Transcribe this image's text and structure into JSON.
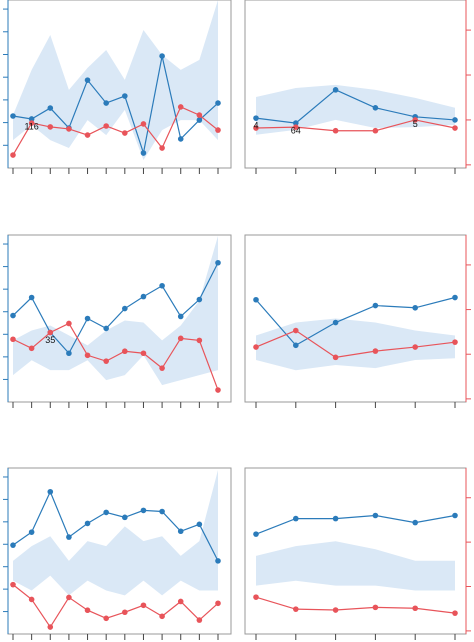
{
  "chart_data": [
    {
      "type": "line",
      "categories": [
        null,
        null,
        null,
        null,
        null,
        null,
        null,
        null,
        null,
        null,
        null,
        null
      ],
      "ylim": [
        0,
        7.4
      ],
      "yticks": [
        1,
        2,
        3,
        4,
        5,
        6,
        7
      ],
      "tick_side": "left",
      "band": {
        "color": "#dae8f6",
        "upper": [
          2.33,
          4.32,
          5.86,
          3.44,
          4.41,
          5.2,
          3.88,
          6.08,
          4.98,
          4.32,
          4.76,
          7.4
        ],
        "lower": [
          1.23,
          1.89,
          1.23,
          0.88,
          2.11,
          1.45,
          2.56,
          0.35,
          1.67,
          2.11,
          2.11,
          1.23
        ]
      },
      "series": [
        {
          "color": "#2b7bba",
          "values": [
            2.29,
            2.16,
            2.64,
            1.76,
            3.87,
            2.86,
            3.17,
            0.66,
            4.93,
            1.28,
            2.11,
            2.86
          ]
        },
        {
          "color": "#e8545a",
          "values": [
            0.57,
            1.98,
            1.81,
            1.72,
            1.45,
            1.85,
            1.54,
            1.94,
            0.88,
            2.69,
            2.33,
            1.67
          ]
        }
      ],
      "annotations": [
        "116"
      ]
    },
    {
      "type": "line",
      "categories": [
        null,
        null,
        null,
        null,
        null,
        null
      ],
      "ylim": [
        -0.07,
        3.67
      ],
      "yticks": [
        0,
        1,
        2,
        3
      ],
      "tick_side": "right",
      "band": {
        "color": "#dae8f6",
        "upper": [
          1.51,
          1.71,
          1.78,
          1.67,
          1.49,
          1.27
        ],
        "lower": [
          0.67,
          0.78,
          1.0,
          0.82,
          0.84,
          0.89
        ]
      },
      "series": [
        {
          "color": "#2b7bba",
          "values": [
            1.04,
            0.93,
            1.67,
            1.27,
            1.07,
            1.0
          ]
        },
        {
          "color": "#e8545a",
          "values": [
            0.82,
            0.84,
            0.76,
            0.76,
            1.0,
            0.82
          ]
        }
      ],
      "annotations": [
        "4",
        "64",
        "5"
      ]
    },
    {
      "type": "line",
      "categories": [
        null,
        null,
        null,
        null,
        null,
        null,
        null,
        null,
        null,
        null,
        null,
        null
      ],
      "ylim": [
        0,
        7.4
      ],
      "yticks": [
        1,
        2,
        3,
        4,
        5,
        6,
        7
      ],
      "tick_side": "left",
      "band": {
        "color": "#dae8f6",
        "upper": [
          2.73,
          3.17,
          3.39,
          2.95,
          2.51,
          3.17,
          3.61,
          3.52,
          2.73,
          3.39,
          4.49,
          7.36
        ],
        "lower": [
          1.19,
          1.85,
          1.41,
          1.41,
          1.85,
          0.97,
          1.19,
          2.07,
          0.75,
          0.97,
          1.19,
          1.41
        ]
      },
      "series": [
        {
          "color": "#2b7bba",
          "values": [
            3.83,
            4.63,
            3.08,
            2.16,
            3.7,
            3.26,
            4.14,
            4.67,
            5.15,
            3.79,
            4.54,
            6.17
          ]
        },
        {
          "color": "#e8545a",
          "values": [
            2.78,
            2.38,
            3.08,
            3.48,
            2.07,
            1.81,
            2.25,
            2.16,
            1.5,
            2.82,
            2.73,
            0.53
          ]
        }
      ],
      "annotations": [
        "35"
      ]
    },
    {
      "type": "line",
      "categories": [
        null,
        null,
        null,
        null,
        null,
        null
      ],
      "ylim": [
        -0.07,
        3.67
      ],
      "yticks": [
        0,
        1,
        2,
        3
      ],
      "tick_side": "right",
      "band": {
        "color": "#dae8f6",
        "upper": [
          1.42,
          1.71,
          1.8,
          1.71,
          1.53,
          1.42
        ],
        "lower": [
          0.87,
          0.64,
          0.76,
          0.69,
          0.87,
          0.91
        ]
      },
      "series": [
        {
          "color": "#2b7bba",
          "values": [
            2.22,
            1.2,
            1.71,
            2.09,
            2.04,
            2.27
          ]
        },
        {
          "color": "#e8545a",
          "values": [
            1.16,
            1.53,
            0.93,
            1.07,
            1.16,
            1.27
          ]
        }
      ]
    },
    {
      "type": "line",
      "categories": [
        null,
        null,
        null,
        null,
        null,
        null,
        null,
        null,
        null,
        null,
        null,
        null
      ],
      "ylim": [
        0,
        7.4
      ],
      "yticks": [
        1,
        2,
        3,
        4,
        5,
        6,
        7
      ],
      "tick_side": "left",
      "band": {
        "color": "#dae8f6",
        "upper": [
          3.26,
          3.92,
          4.36,
          3.26,
          4.14,
          3.92,
          4.8,
          4.14,
          4.36,
          3.48,
          4.14,
          7.31
        ],
        "lower": [
          2.38,
          1.94,
          2.6,
          1.72,
          2.38,
          1.94,
          1.72,
          2.38,
          1.72,
          2.38,
          1.94,
          1.94
        ]
      },
      "series": [
        {
          "color": "#2b7bba",
          "values": [
            3.96,
            4.54,
            6.34,
            4.32,
            4.93,
            5.42,
            5.2,
            5.51,
            5.46,
            4.58,
            4.89,
            3.26
          ]
        },
        {
          "color": "#e8545a",
          "values": [
            2.2,
            1.54,
            0.31,
            1.63,
            1.06,
            0.7,
            0.97,
            1.28,
            0.79,
            1.45,
            0.62,
            1.37
          ]
        }
      ]
    },
    {
      "type": "line",
      "categories": [
        null,
        null,
        null,
        null,
        null,
        null
      ],
      "ylim": [
        -0.07,
        3.67
      ],
      "yticks": [
        0,
        1,
        2,
        3
      ],
      "tick_side": "right",
      "band": {
        "color": "#dae8f6",
        "upper": [
          1.69,
          1.91,
          2.02,
          1.84,
          1.58,
          1.58
        ],
        "lower": [
          1.02,
          1.13,
          1.02,
          1.02,
          0.91,
          0.91
        ]
      },
      "series": [
        {
          "color": "#2b7bba",
          "values": [
            2.18,
            2.53,
            2.53,
            2.6,
            2.44,
            2.6
          ]
        },
        {
          "color": "#e8545a",
          "values": [
            0.76,
            0.49,
            0.47,
            0.53,
            0.51,
            0.4
          ]
        }
      ]
    }
  ]
}
